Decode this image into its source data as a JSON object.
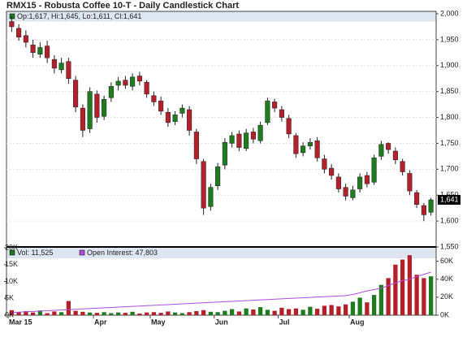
{
  "chart_data": [
    {
      "type": "candlestick",
      "title": "RMX15 - Robusta Coffee 10-T - Daily Candlestick Chart",
      "legend_text": "Op:1,617, Hi:1,645, Lo:1,611, Cl:1,641",
      "up_color": "#1e7b1e",
      "down_color": "#b3202a",
      "open": [
        1985,
        1972,
        1958,
        1940,
        1922,
        1938,
        1912,
        1892,
        1908,
        1872,
        1818,
        1778,
        1845,
        1802,
        1838,
        1862,
        1872,
        1860,
        1880,
        1868,
        1842,
        1832,
        1810,
        1792,
        1808,
        1815,
        1772,
        1715,
        1628,
        1668,
        1708,
        1750,
        1768,
        1740,
        1772,
        1755,
        1790,
        1830,
        1815,
        1798,
        1765,
        1732,
        1745,
        1755,
        1720,
        1702,
        1685,
        1665,
        1645,
        1662,
        1688,
        1675,
        1725,
        1750,
        1735,
        1715,
        1692,
        1655,
        1630,
        1617
      ],
      "high": [
        1995,
        1980,
        1968,
        1950,
        1945,
        1948,
        1920,
        1915,
        1915,
        1880,
        1825,
        1858,
        1852,
        1842,
        1868,
        1878,
        1880,
        1885,
        1888,
        1872,
        1850,
        1840,
        1818,
        1812,
        1825,
        1822,
        1778,
        1720,
        1672,
        1712,
        1760,
        1772,
        1775,
        1778,
        1780,
        1792,
        1838,
        1836,
        1822,
        1805,
        1770,
        1752,
        1760,
        1762,
        1728,
        1710,
        1692,
        1672,
        1668,
        1692,
        1695,
        1728,
        1755,
        1752,
        1742,
        1720,
        1698,
        1660,
        1635,
        1645
      ],
      "low": [
        1965,
        1948,
        1935,
        1915,
        1915,
        1905,
        1885,
        1885,
        1865,
        1810,
        1762,
        1770,
        1790,
        1795,
        1830,
        1852,
        1855,
        1852,
        1862,
        1838,
        1822,
        1805,
        1782,
        1785,
        1800,
        1765,
        1710,
        1612,
        1620,
        1660,
        1700,
        1742,
        1735,
        1735,
        1750,
        1750,
        1785,
        1810,
        1792,
        1760,
        1722,
        1725,
        1738,
        1715,
        1692,
        1680,
        1655,
        1640,
        1640,
        1655,
        1665,
        1670,
        1718,
        1730,
        1710,
        1688,
        1650,
        1625,
        1600,
        1611
      ],
      "close": [
        1975,
        1955,
        1945,
        1925,
        1935,
        1915,
        1895,
        1905,
        1875,
        1820,
        1775,
        1850,
        1800,
        1835,
        1860,
        1870,
        1862,
        1878,
        1870,
        1845,
        1830,
        1812,
        1790,
        1805,
        1818,
        1775,
        1720,
        1625,
        1665,
        1705,
        1752,
        1765,
        1742,
        1770,
        1758,
        1785,
        1832,
        1818,
        1800,
        1768,
        1730,
        1745,
        1752,
        1722,
        1700,
        1688,
        1662,
        1648,
        1660,
        1685,
        1672,
        1722,
        1748,
        1738,
        1718,
        1695,
        1658,
        1632,
        1612,
        1641
      ],
      "last_label": {
        "value": 1641,
        "label": "1,641"
      },
      "ylim": [
        1550,
        2000
      ],
      "yticks": [
        {
          "value": 1550,
          "label": "1,550"
        },
        {
          "value": 1600,
          "label": "1,600"
        },
        {
          "value": 1650,
          "label": "1,650"
        },
        {
          "value": 1700,
          "label": "1,700"
        },
        {
          "value": 1750,
          "label": "1,750"
        },
        {
          "value": 1800,
          "label": "1,800"
        },
        {
          "value": 1850,
          "label": "1,850"
        },
        {
          "value": 1900,
          "label": "1,900"
        },
        {
          "value": 1950,
          "label": "1,950"
        },
        {
          "value": 2000,
          "label": "2,000"
        }
      ],
      "grid": true
    },
    {
      "type": "bar",
      "categories": [
        "Mar 15",
        null,
        null,
        null,
        null,
        null,
        null,
        null,
        null,
        null,
        null,
        null,
        "Apr",
        null,
        null,
        null,
        null,
        null,
        null,
        null,
        "May",
        null,
        null,
        null,
        null,
        null,
        null,
        null,
        null,
        "Jun",
        null,
        null,
        null,
        null,
        null,
        null,
        null,
        null,
        "Jul",
        null,
        null,
        null,
        null,
        null,
        null,
        null,
        null,
        null,
        "Aug",
        null,
        null,
        null,
        null,
        null,
        null,
        null,
        null,
        null,
        null,
        null
      ],
      "series": [
        {
          "name": "Vol: 11,525",
          "color": "#1e7b1e",
          "values": [
            1500,
            900,
            1200,
            800,
            1400,
            600,
            1100,
            900,
            4200,
            1300,
            1000,
            800,
            700,
            900,
            600,
            800,
            700,
            1000,
            500,
            800,
            900,
            700,
            1100,
            800,
            600,
            900,
            1200,
            1500,
            1000,
            900,
            1300,
            1800,
            1100,
            2000,
            1700,
            2400,
            1600,
            1300,
            2200,
            1800,
            2000,
            1600,
            2500,
            1900,
            2800,
            3000,
            2600,
            3200,
            4000,
            5200,
            3800,
            6000,
            9000,
            11000,
            15000,
            16500,
            17800,
            12000,
            11000,
            11525
          ]
        },
        {
          "name": "Open Interest: 47,803",
          "color": "#b04ee0",
          "axis": "y2",
          "values": [
            3000,
            3400,
            3800,
            4200,
            4600,
            5000,
            5400,
            5800,
            6200,
            6600,
            7000,
            7400,
            7800,
            8200,
            8600,
            9000,
            9400,
            9800,
            10200,
            10600,
            11000,
            11400,
            11800,
            12200,
            12600,
            13000,
            13400,
            13800,
            14200,
            14600,
            15000,
            15400,
            15800,
            16200,
            16600,
            17000,
            17400,
            17800,
            18200,
            18600,
            19000,
            19400,
            19800,
            20200,
            20600,
            21000,
            21400,
            21800,
            23000,
            25000,
            27000,
            28500,
            30000,
            33000,
            36000,
            38500,
            40000,
            43000,
            45500,
            47803
          ]
        }
      ],
      "ylim": [
        0,
        20000
      ],
      "yticks": [
        {
          "value": 0,
          "label": "0K"
        },
        {
          "value": 5000,
          "label": "5K"
        },
        {
          "value": 10000,
          "label": "10K"
        },
        {
          "value": 15000,
          "label": "15K"
        },
        {
          "value": 20000,
          "label": "20K"
        }
      ],
      "y2lim": [
        0,
        75000
      ],
      "y2ticks": [
        {
          "value": 0,
          "label": "0K"
        },
        {
          "value": 20000,
          "label": "20K"
        },
        {
          "value": 40000,
          "label": "40K"
        },
        {
          "value": 60000,
          "label": "60K"
        }
      ]
    }
  ]
}
